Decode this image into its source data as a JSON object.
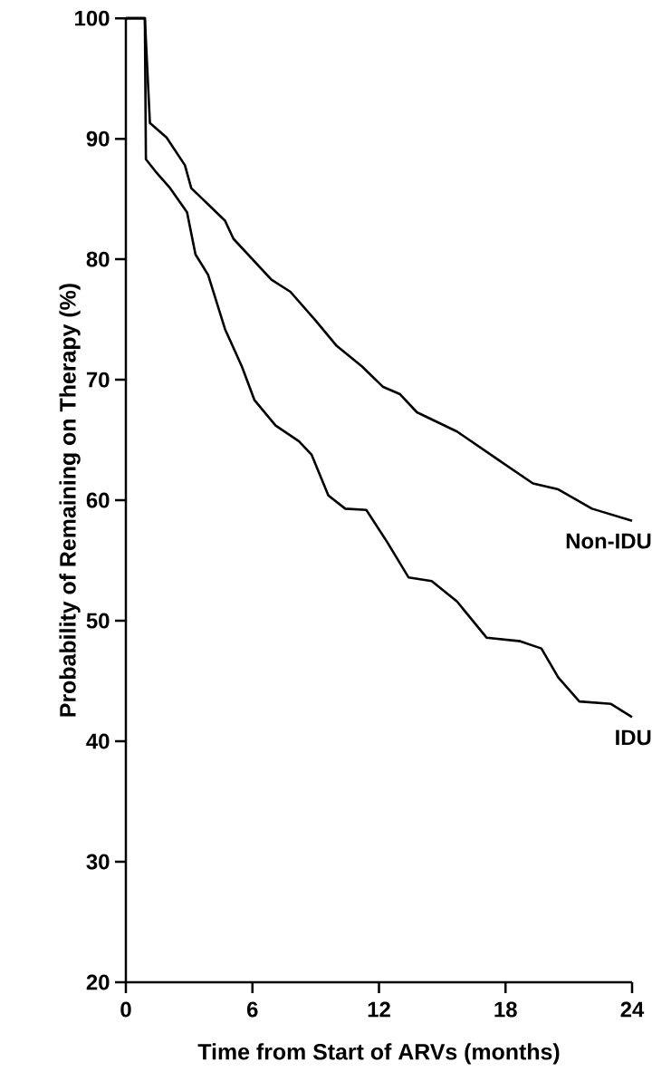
{
  "chart_data": {
    "type": "line",
    "xlabel": "Time from Start of ARVs (months)",
    "ylabel": "Probability of Remaining on Therapy (%)",
    "xlim": [
      0,
      24
    ],
    "ylim": [
      20,
      100
    ],
    "xticks": [
      0,
      6,
      12,
      18,
      24
    ],
    "yticks": [
      20,
      30,
      40,
      50,
      60,
      70,
      80,
      90,
      100
    ],
    "grid": false,
    "legend": false,
    "marker": "none",
    "line_style": "solid",
    "series": [
      {
        "name": "Non-IDU",
        "color": "#000000",
        "x": [
          0,
          0.9,
          1.14,
          1.93,
          2.8,
          3.1,
          4.7,
          5.1,
          6.9,
          7.8,
          9.0,
          10.0,
          11.2,
          12.2,
          13.0,
          13.8,
          15.7,
          17.7,
          19.3,
          20.5,
          22.1,
          24
        ],
        "values": [
          100,
          100,
          91.3,
          90.1,
          87.8,
          85.9,
          83.2,
          81.7,
          78.3,
          77.3,
          74.9,
          72.8,
          71.1,
          69.4,
          68.8,
          67.3,
          65.7,
          63.3,
          61.4,
          60.9,
          59.3,
          58.3
        ]
      },
      {
        "name": "IDU",
        "color": "#000000",
        "x": [
          0,
          0.9,
          0.95,
          1.4,
          2.1,
          2.9,
          3.3,
          3.9,
          4.7,
          5.5,
          6.1,
          7.1,
          8.2,
          8.8,
          9.6,
          10.4,
          11.4,
          12.4,
          13.4,
          14.5,
          15.7,
          17.1,
          18.7,
          19.7,
          20.5,
          21.5,
          23.0,
          24
        ],
        "values": [
          100,
          100,
          88.3,
          87.3,
          85.9,
          83.9,
          80.4,
          78.7,
          74.2,
          71.1,
          68.3,
          66.2,
          64.9,
          63.8,
          60.4,
          59.3,
          59.2,
          56.5,
          53.6,
          53.3,
          51.6,
          48.6,
          48.3,
          47.7,
          45.3,
          43.3,
          43.1,
          42.0
        ]
      }
    ]
  }
}
